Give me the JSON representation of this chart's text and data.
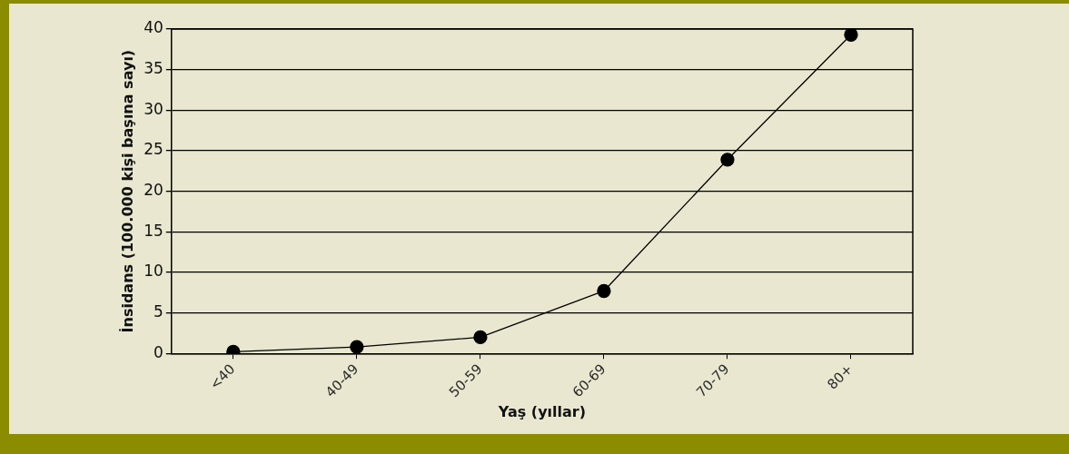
{
  "chart_data": {
    "type": "line",
    "xlabel": "Yaş (yıllar)",
    "ylabel": "İnsidans (100.000 kişi başına sayı)",
    "categories": [
      "<40",
      "40-49",
      "50-59",
      "60-69",
      "70-79",
      "80+"
    ],
    "series": [
      {
        "color": "#000000",
        "values": [
          0.2,
          0.8,
          2.0,
          7.7,
          23.9,
          39.3
        ]
      }
    ],
    "ylim": [
      0,
      40
    ],
    "yticks": [
      0,
      5,
      10,
      15,
      20,
      25,
      30,
      35,
      40
    ],
    "grid": "y",
    "legend": false,
    "marker": "circle",
    "line_style": "solid"
  }
}
